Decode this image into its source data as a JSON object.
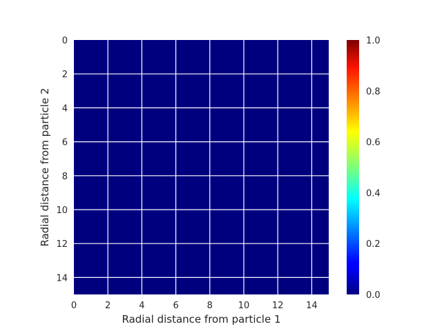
{
  "chart_data": {
    "type": "heatmap",
    "xlabel": "Radial distance from particle 1",
    "ylabel": "Radial distance from particle 2",
    "xlim": [
      0,
      15
    ],
    "ylim": [
      15,
      0
    ],
    "x_ticks": [
      0,
      2,
      4,
      6,
      8,
      10,
      12,
      14
    ],
    "y_ticks": [
      0,
      2,
      4,
      6,
      8,
      10,
      12,
      14
    ],
    "grid": true,
    "values_uniform": 0.0,
    "colormap": "jet",
    "colorbar": {
      "range": [
        0.0,
        1.0
      ],
      "ticks": [
        "0.0",
        "0.2",
        "0.4",
        "0.6",
        "0.8",
        "1.0"
      ],
      "placement": "right"
    },
    "colors": {
      "cell_fill": "#00007f",
      "grid_line": "#ffffff",
      "text": "#262626"
    }
  }
}
